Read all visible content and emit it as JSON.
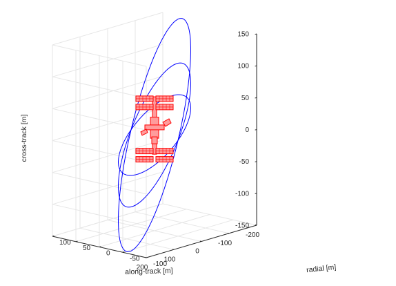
{
  "chart_data": {
    "type": "line3d",
    "title": "",
    "xlabel": "along-track [m]",
    "ylabel": "radial [m]",
    "zlabel": "cross-track [m]",
    "xlim": [
      -200,
      200
    ],
    "ylim": [
      -100,
      100
    ],
    "zlim": [
      -150,
      150
    ],
    "x_ticks": [
      "-200",
      "-100",
      "0",
      "100",
      "200"
    ],
    "y_ticks": [
      "-100",
      "-50",
      "0",
      "50",
      "100"
    ],
    "z_ticks": [
      "-150",
      "-100",
      "-50",
      "0",
      "50",
      "100",
      "150"
    ],
    "grid": true,
    "legend": "none",
    "colors": {
      "orbit": "#0000ff",
      "station": "#ff0000"
    },
    "series": [
      {
        "type": "ellipse",
        "amplitude": 50,
        "shape": [
          -2,
          1,
          1
        ],
        "color": "#0000ff"
      },
      {
        "type": "ellipse",
        "amplitude": 50,
        "shape": [
          -2,
          1,
          2
        ],
        "color": "#0000ff"
      },
      {
        "type": "ellipse",
        "amplitude": 50,
        "shape": [
          -2,
          1,
          3.4
        ],
        "color": "#0000ff"
      }
    ],
    "station": {
      "color": "#ff0000",
      "truss_z_range": [
        -30,
        60
      ],
      "solar_array_z": [
        -38,
        -25,
        44,
        57
      ],
      "module_z_range": [
        -5,
        28
      ]
    }
  }
}
